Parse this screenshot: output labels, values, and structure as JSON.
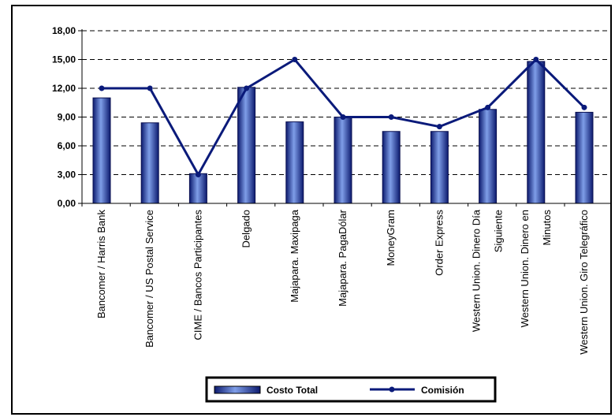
{
  "chart_data": {
    "type": "bar",
    "categories": [
      [
        "Bancomer / Harris Bank"
      ],
      [
        "Bancomer / US Postal Service"
      ],
      [
        "CIME / Bancos Participantes"
      ],
      [
        "Delgado"
      ],
      [
        "Majapara. Maxipaga"
      ],
      [
        "Majapara. PagaDólar"
      ],
      [
        "MoneyGram"
      ],
      [
        "Order Express"
      ],
      [
        "Western Union. Dinero Día",
        "Siguiente"
      ],
      [
        "Western Union. Dinero en",
        "Minutos"
      ],
      [
        "Western Union. Giro Telegráfico"
      ]
    ],
    "series": [
      {
        "name": "Costo Total",
        "kind": "bar",
        "values": [
          11.0,
          8.4,
          3.1,
          12.1,
          8.5,
          9.0,
          7.5,
          7.5,
          9.8,
          14.8,
          9.5
        ],
        "color": "#1a2a8c"
      },
      {
        "name": "Comisión",
        "kind": "line",
        "values": [
          12.0,
          12.0,
          3.0,
          12.0,
          15.0,
          9.0,
          9.0,
          8.0,
          10.0,
          15.0,
          10.0
        ],
        "color": "#0a1a7a"
      }
    ],
    "yticks": [
      "0,00",
      "3,00",
      "6,00",
      "9,00",
      "12,00",
      "15,00",
      "18,00"
    ],
    "ylim": [
      0,
      18
    ],
    "grid": true,
    "legend_position": "bottom"
  }
}
